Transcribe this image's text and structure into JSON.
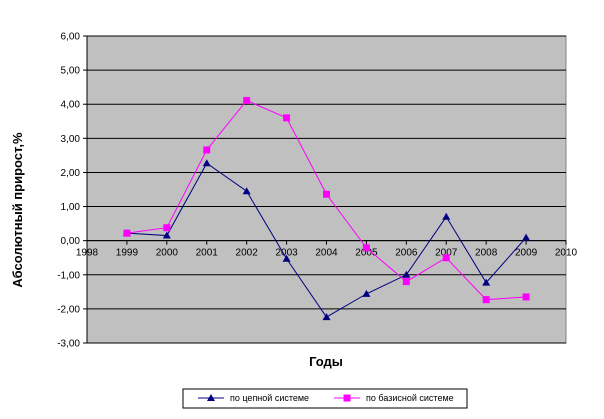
{
  "chart_data": {
    "type": "line",
    "title": "",
    "xlabel": "Годы",
    "ylabel": "Абсолютный прирост,%",
    "x_ticks": [
      "1998",
      "1999",
      "2000",
      "2001",
      "2002",
      "2003",
      "2004",
      "2005",
      "2006",
      "2007",
      "2008",
      "2009",
      "2010"
    ],
    "y_ticks": [
      "6,00",
      "5,00",
      "4,00",
      "3,00",
      "2,00",
      "1,00",
      "0,00",
      "-1,00",
      "-2,00",
      "-3,00"
    ],
    "xlim": [
      1998,
      2010
    ],
    "ylim": [
      -3,
      6
    ],
    "grid": "horizontal",
    "plot_background": "#c0c0c0",
    "legend_position": "bottom",
    "series": [
      {
        "name": "по цепной системе",
        "color": "#000080",
        "marker": "triangle",
        "x": [
          1999,
          2000,
          2001,
          2002,
          2003,
          2004,
          2005,
          2006,
          2007,
          2008,
          2009
        ],
        "values": [
          0.22,
          0.15,
          2.27,
          1.45,
          -0.53,
          -2.24,
          -1.56,
          -1.0,
          0.7,
          -1.23,
          0.09
        ]
      },
      {
        "name": "по базисной системе",
        "color": "#ff00ff",
        "marker": "square",
        "x": [
          1999,
          2000,
          2001,
          2002,
          2003,
          2004,
          2005,
          2006,
          2007,
          2008,
          2009
        ],
        "values": [
          0.22,
          0.38,
          2.66,
          4.11,
          3.6,
          1.36,
          -0.21,
          -1.2,
          -0.5,
          -1.73,
          -1.65
        ]
      }
    ]
  }
}
